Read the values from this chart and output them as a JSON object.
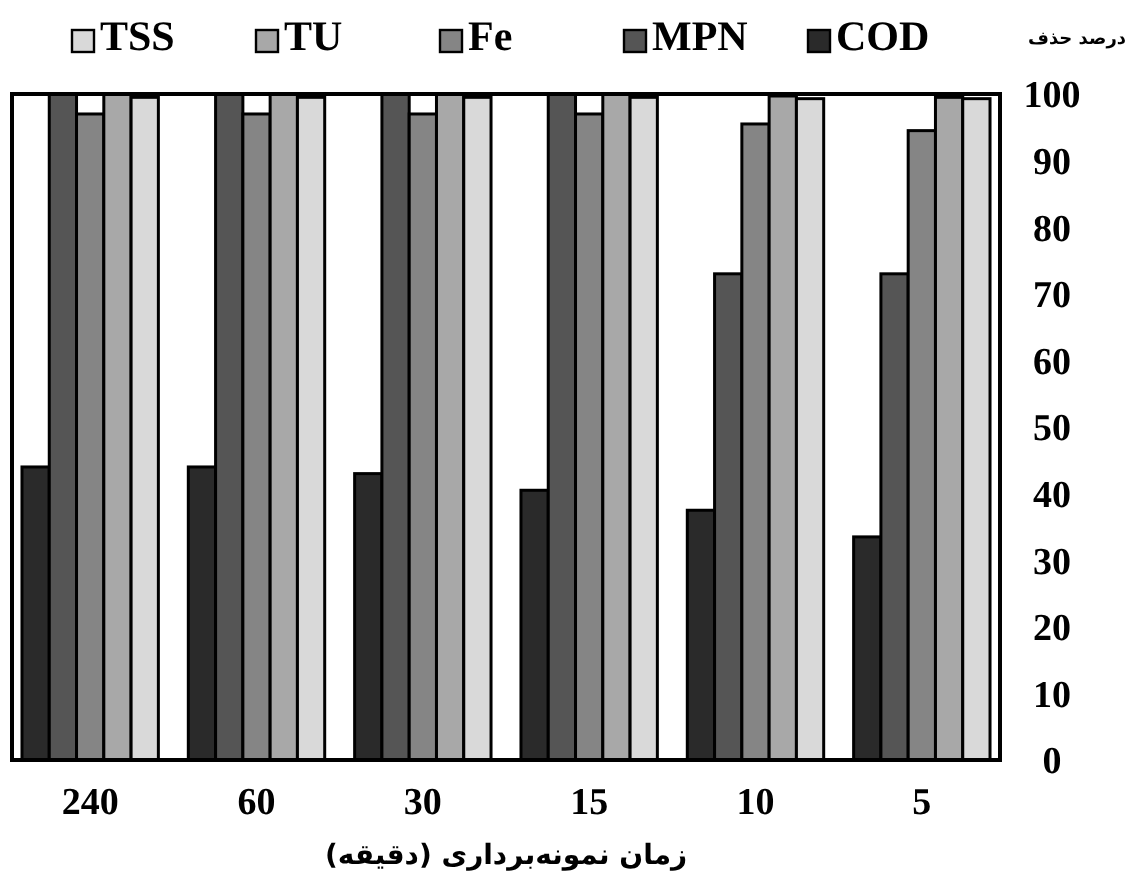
{
  "chart_data": {
    "type": "bar",
    "xlabel": "زمان نمونه‌برداری (دقیقه)",
    "ylabel": "درصد حذف",
    "categories": [
      "240",
      "60",
      "30",
      "15",
      "10",
      "5"
    ],
    "series": [
      {
        "name": "COD",
        "color": "#2a2a2a",
        "values": [
          44,
          44,
          43,
          40.5,
          37.5,
          33.5
        ]
      },
      {
        "name": "MPN",
        "color": "#555555",
        "values": [
          100,
          100,
          100,
          100,
          73,
          73
        ]
      },
      {
        "name": "Fe",
        "color": "#858585",
        "values": [
          97,
          97,
          97,
          97,
          95.5,
          94.5
        ]
      },
      {
        "name": "TU",
        "color": "#a8a8a8",
        "values": [
          100,
          100,
          100,
          100,
          99.7,
          99.5
        ]
      },
      {
        "name": "TSS",
        "color": "#d9d9d9",
        "values": [
          99.5,
          99.5,
          99.5,
          99.5,
          99.3,
          99.3
        ]
      }
    ],
    "ylim": [
      0,
      100
    ],
    "yticks": [
      0,
      10,
      20,
      30,
      40,
      50,
      60,
      70,
      80,
      90,
      100
    ],
    "grid": false,
    "legend": "top"
  }
}
